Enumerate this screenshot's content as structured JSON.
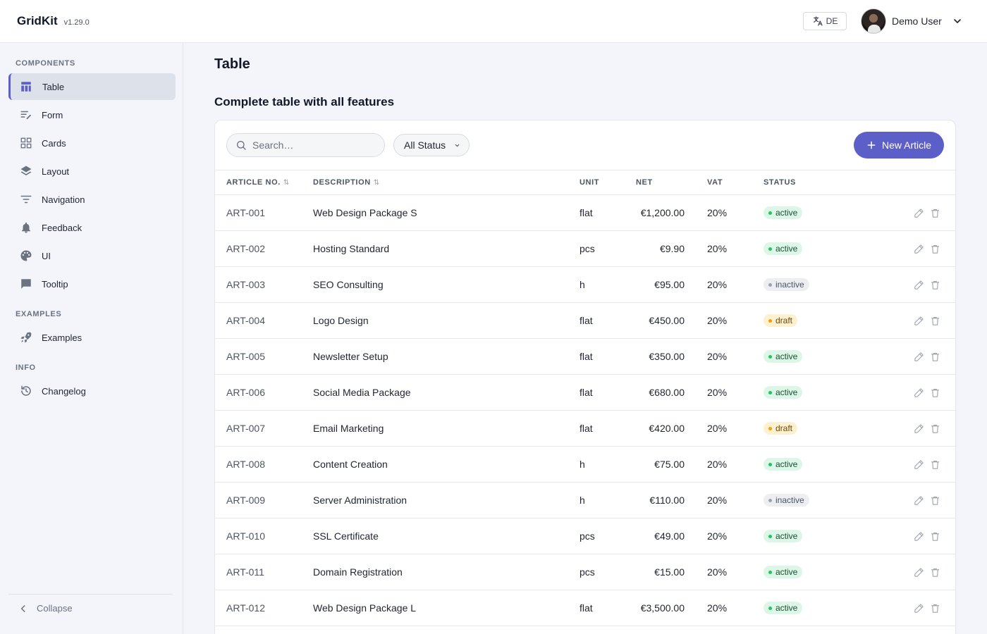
{
  "header": {
    "brand": "GridKit",
    "version": "v1.29.0",
    "language": "DE",
    "user_name": "Demo User"
  },
  "sidebar": {
    "sections": [
      {
        "label": "COMPONENTS",
        "items": [
          {
            "label": "Table",
            "icon": "table-icon",
            "active": true
          },
          {
            "label": "Form",
            "icon": "form-icon"
          },
          {
            "label": "Cards",
            "icon": "cards-icon"
          },
          {
            "label": "Layout",
            "icon": "layers-icon"
          },
          {
            "label": "Navigation",
            "icon": "filter-icon"
          },
          {
            "label": "Feedback",
            "icon": "bell-icon"
          },
          {
            "label": "UI",
            "icon": "palette-icon"
          },
          {
            "label": "Tooltip",
            "icon": "chat-icon"
          }
        ]
      },
      {
        "label": "EXAMPLES",
        "items": [
          {
            "label": "Examples",
            "icon": "rocket-icon"
          }
        ]
      },
      {
        "label": "INFO",
        "items": [
          {
            "label": "Changelog",
            "icon": "history-icon"
          }
        ]
      }
    ],
    "collapse_label": "Collapse"
  },
  "main": {
    "page_title": "Table",
    "section_title": "Complete table with all features",
    "toolbar": {
      "search_placeholder": "Search…",
      "status_filter": "All Status",
      "new_button": "New Article"
    },
    "table": {
      "columns": [
        "Article No.",
        "Description",
        "Unit",
        "Net",
        "VAT",
        "Status"
      ],
      "rows": [
        {
          "no": "ART-001",
          "desc": "Web Design Package S",
          "unit": "flat",
          "net": "€1,200.00",
          "vat": "20%",
          "status": "active"
        },
        {
          "no": "ART-002",
          "desc": "Hosting Standard",
          "unit": "pcs",
          "net": "€9.90",
          "vat": "20%",
          "status": "active"
        },
        {
          "no": "ART-003",
          "desc": "SEO Consulting",
          "unit": "h",
          "net": "€95.00",
          "vat": "20%",
          "status": "inactive"
        },
        {
          "no": "ART-004",
          "desc": "Logo Design",
          "unit": "flat",
          "net": "€450.00",
          "vat": "20%",
          "status": "draft"
        },
        {
          "no": "ART-005",
          "desc": "Newsletter Setup",
          "unit": "flat",
          "net": "€350.00",
          "vat": "20%",
          "status": "active"
        },
        {
          "no": "ART-006",
          "desc": "Social Media Package",
          "unit": "flat",
          "net": "€680.00",
          "vat": "20%",
          "status": "active"
        },
        {
          "no": "ART-007",
          "desc": "Email Marketing",
          "unit": "flat",
          "net": "€420.00",
          "vat": "20%",
          "status": "draft"
        },
        {
          "no": "ART-008",
          "desc": "Content Creation",
          "unit": "h",
          "net": "€75.00",
          "vat": "20%",
          "status": "active"
        },
        {
          "no": "ART-009",
          "desc": "Server Administration",
          "unit": "h",
          "net": "€110.00",
          "vat": "20%",
          "status": "inactive"
        },
        {
          "no": "ART-010",
          "desc": "SSL Certificate",
          "unit": "pcs",
          "net": "€49.00",
          "vat": "20%",
          "status": "active"
        },
        {
          "no": "ART-011",
          "desc": "Domain Registration",
          "unit": "pcs",
          "net": "€15.00",
          "vat": "20%",
          "status": "active"
        },
        {
          "no": "ART-012",
          "desc": "Web Design Package L",
          "unit": "flat",
          "net": "€3,500.00",
          "vat": "20%",
          "status": "active"
        }
      ]
    }
  },
  "colors": {
    "accent": "#5b5fc7",
    "active": "#22c55e",
    "inactive": "#9ca3af",
    "draft": "#f59e0b"
  }
}
